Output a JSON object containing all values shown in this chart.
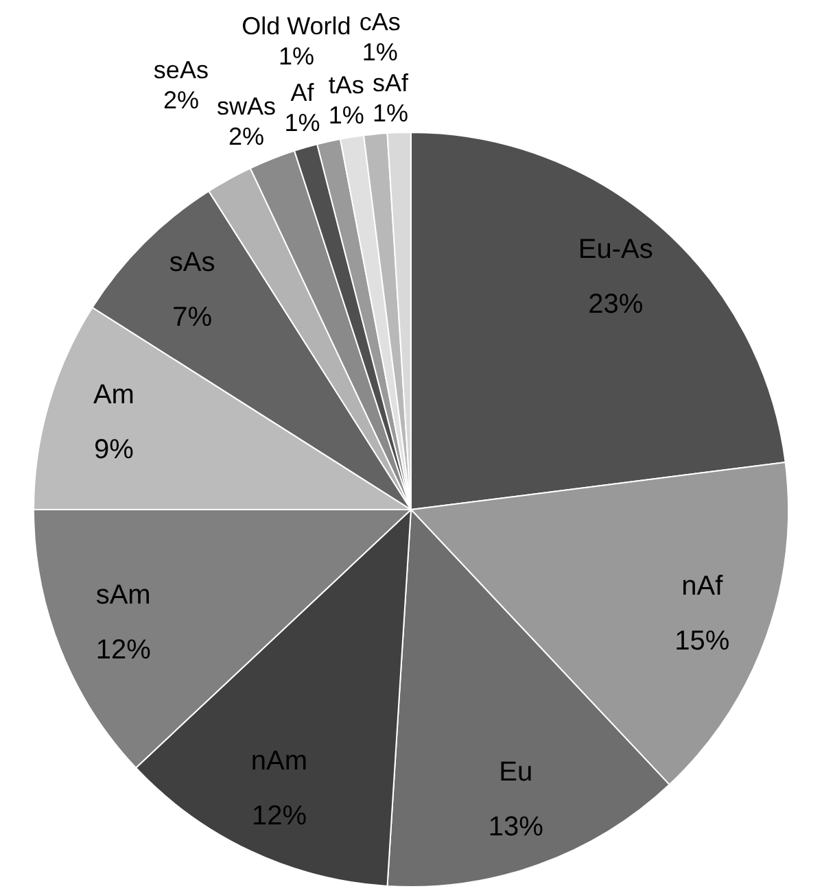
{
  "chart_data": {
    "type": "pie",
    "categories": [
      "Eu-As",
      "nAf",
      "Eu",
      "nAm",
      "sAm",
      "Am",
      "sAs",
      "seAs",
      "swAs",
      "Af",
      "Old World",
      "tAs",
      "cAs",
      "sAf"
    ],
    "values": [
      23,
      15,
      13,
      12,
      12,
      9,
      7,
      2,
      2,
      1,
      1,
      1,
      1,
      1
    ],
    "value_labels": [
      "23%",
      "15%",
      "13%",
      "12%",
      "12%",
      "9%",
      "7%",
      "2%",
      "2%",
      "1%",
      "1%",
      "1%",
      "1%",
      "1%"
    ],
    "colors": [
      "#505050",
      "#999999",
      "#6e6e6e",
      "#404040",
      "#808080",
      "#bbbbbb",
      "#636363",
      "#b3b3b3",
      "#8a8a8a",
      "#4f4f4f",
      "#9a9a9a",
      "#e0e0e0",
      "#b8b8b8",
      "#d9d9d9"
    ]
  }
}
